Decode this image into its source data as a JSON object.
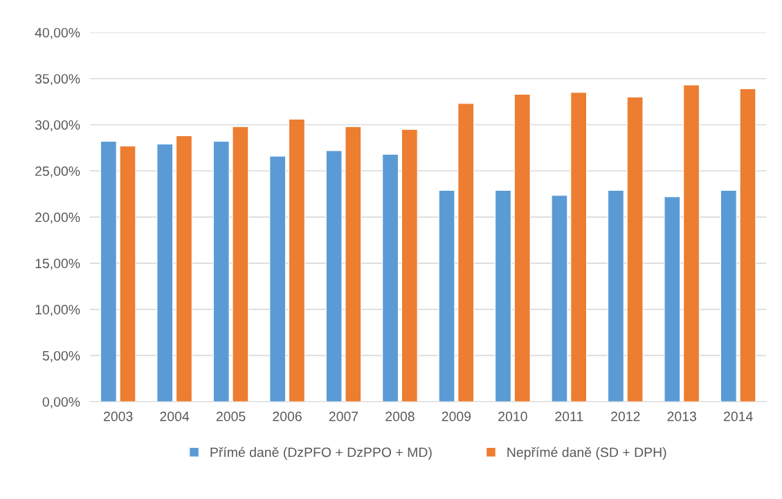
{
  "chart_data": {
    "type": "bar",
    "categories": [
      "2003",
      "2004",
      "2005",
      "2006",
      "2007",
      "2008",
      "2009",
      "2010",
      "2011",
      "2012",
      "2013",
      "2014"
    ],
    "series": [
      {
        "name": "Přímé daně (DzPFO + DzPPO + MD)",
        "color": "#5b9bd5",
        "values": [
          28.2,
          27.9,
          28.2,
          26.6,
          27.2,
          26.8,
          22.9,
          22.9,
          22.35,
          22.9,
          22.2,
          22.9
        ]
      },
      {
        "name": "Nepřímé daně (SD + DPH)",
        "color": "#ed7d31",
        "values": [
          27.7,
          28.8,
          29.8,
          30.6,
          29.8,
          29.5,
          32.3,
          33.3,
          33.5,
          33.0,
          34.3,
          33.9
        ]
      }
    ],
    "ylim": [
      0,
      40
    ],
    "yticks": [
      {
        "value": 0,
        "label": "0,00%"
      },
      {
        "value": 5,
        "label": "5,00%"
      },
      {
        "value": 10,
        "label": "10,00%"
      },
      {
        "value": 15,
        "label": "15,00%"
      },
      {
        "value": 20,
        "label": "20,00%"
      },
      {
        "value": 25,
        "label": "25,00%"
      },
      {
        "value": 30,
        "label": "30,00%"
      },
      {
        "value": 35,
        "label": "35,00%"
      },
      {
        "value": 40,
        "label": "40,00%"
      }
    ],
    "grid": "y",
    "legend": "bottom"
  }
}
